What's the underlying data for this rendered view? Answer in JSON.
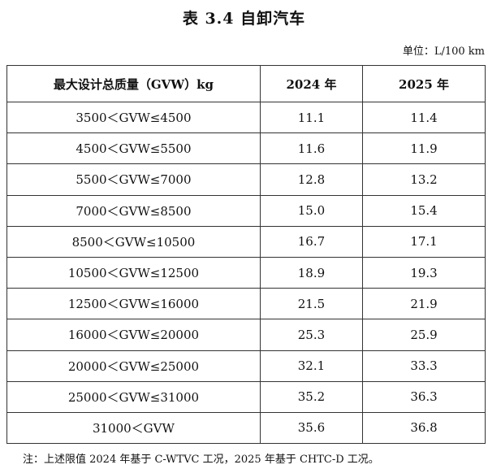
{
  "header": {
    "title": "表 3.4 自卸汽车",
    "unit": "单位：L/100 km"
  },
  "table": {
    "columns": [
      "最大设计总质量（GVW）kg",
      "2024 年",
      "2025 年"
    ],
    "rows": [
      [
        "3500＜GVW≤4500",
        "11.1",
        "11.4"
      ],
      [
        "4500＜GVW≤5500",
        "11.6",
        "11.9"
      ],
      [
        "5500＜GVW≤7000",
        "12.8",
        "13.2"
      ],
      [
        "7000＜GVW≤8500",
        "15.0",
        "15.4"
      ],
      [
        "8500＜GVW≤10500",
        "16.7",
        "17.1"
      ],
      [
        "10500＜GVW≤12500",
        "18.9",
        "19.3"
      ],
      [
        "12500＜GVW≤16000",
        "21.5",
        "21.9"
      ],
      [
        "16000＜GVW≤20000",
        "25.3",
        "25.9"
      ],
      [
        "20000＜GVW≤25000",
        "32.1",
        "33.3"
      ],
      [
        "25000＜GVW≤31000",
        "35.2",
        "36.3"
      ],
      [
        "31000＜GVW",
        "35.6",
        "36.8"
      ]
    ]
  },
  "footnote": "注：上述限值 2024 年基于 C-WTVC 工况，2025 年基于 CHTC-D 工况。"
}
